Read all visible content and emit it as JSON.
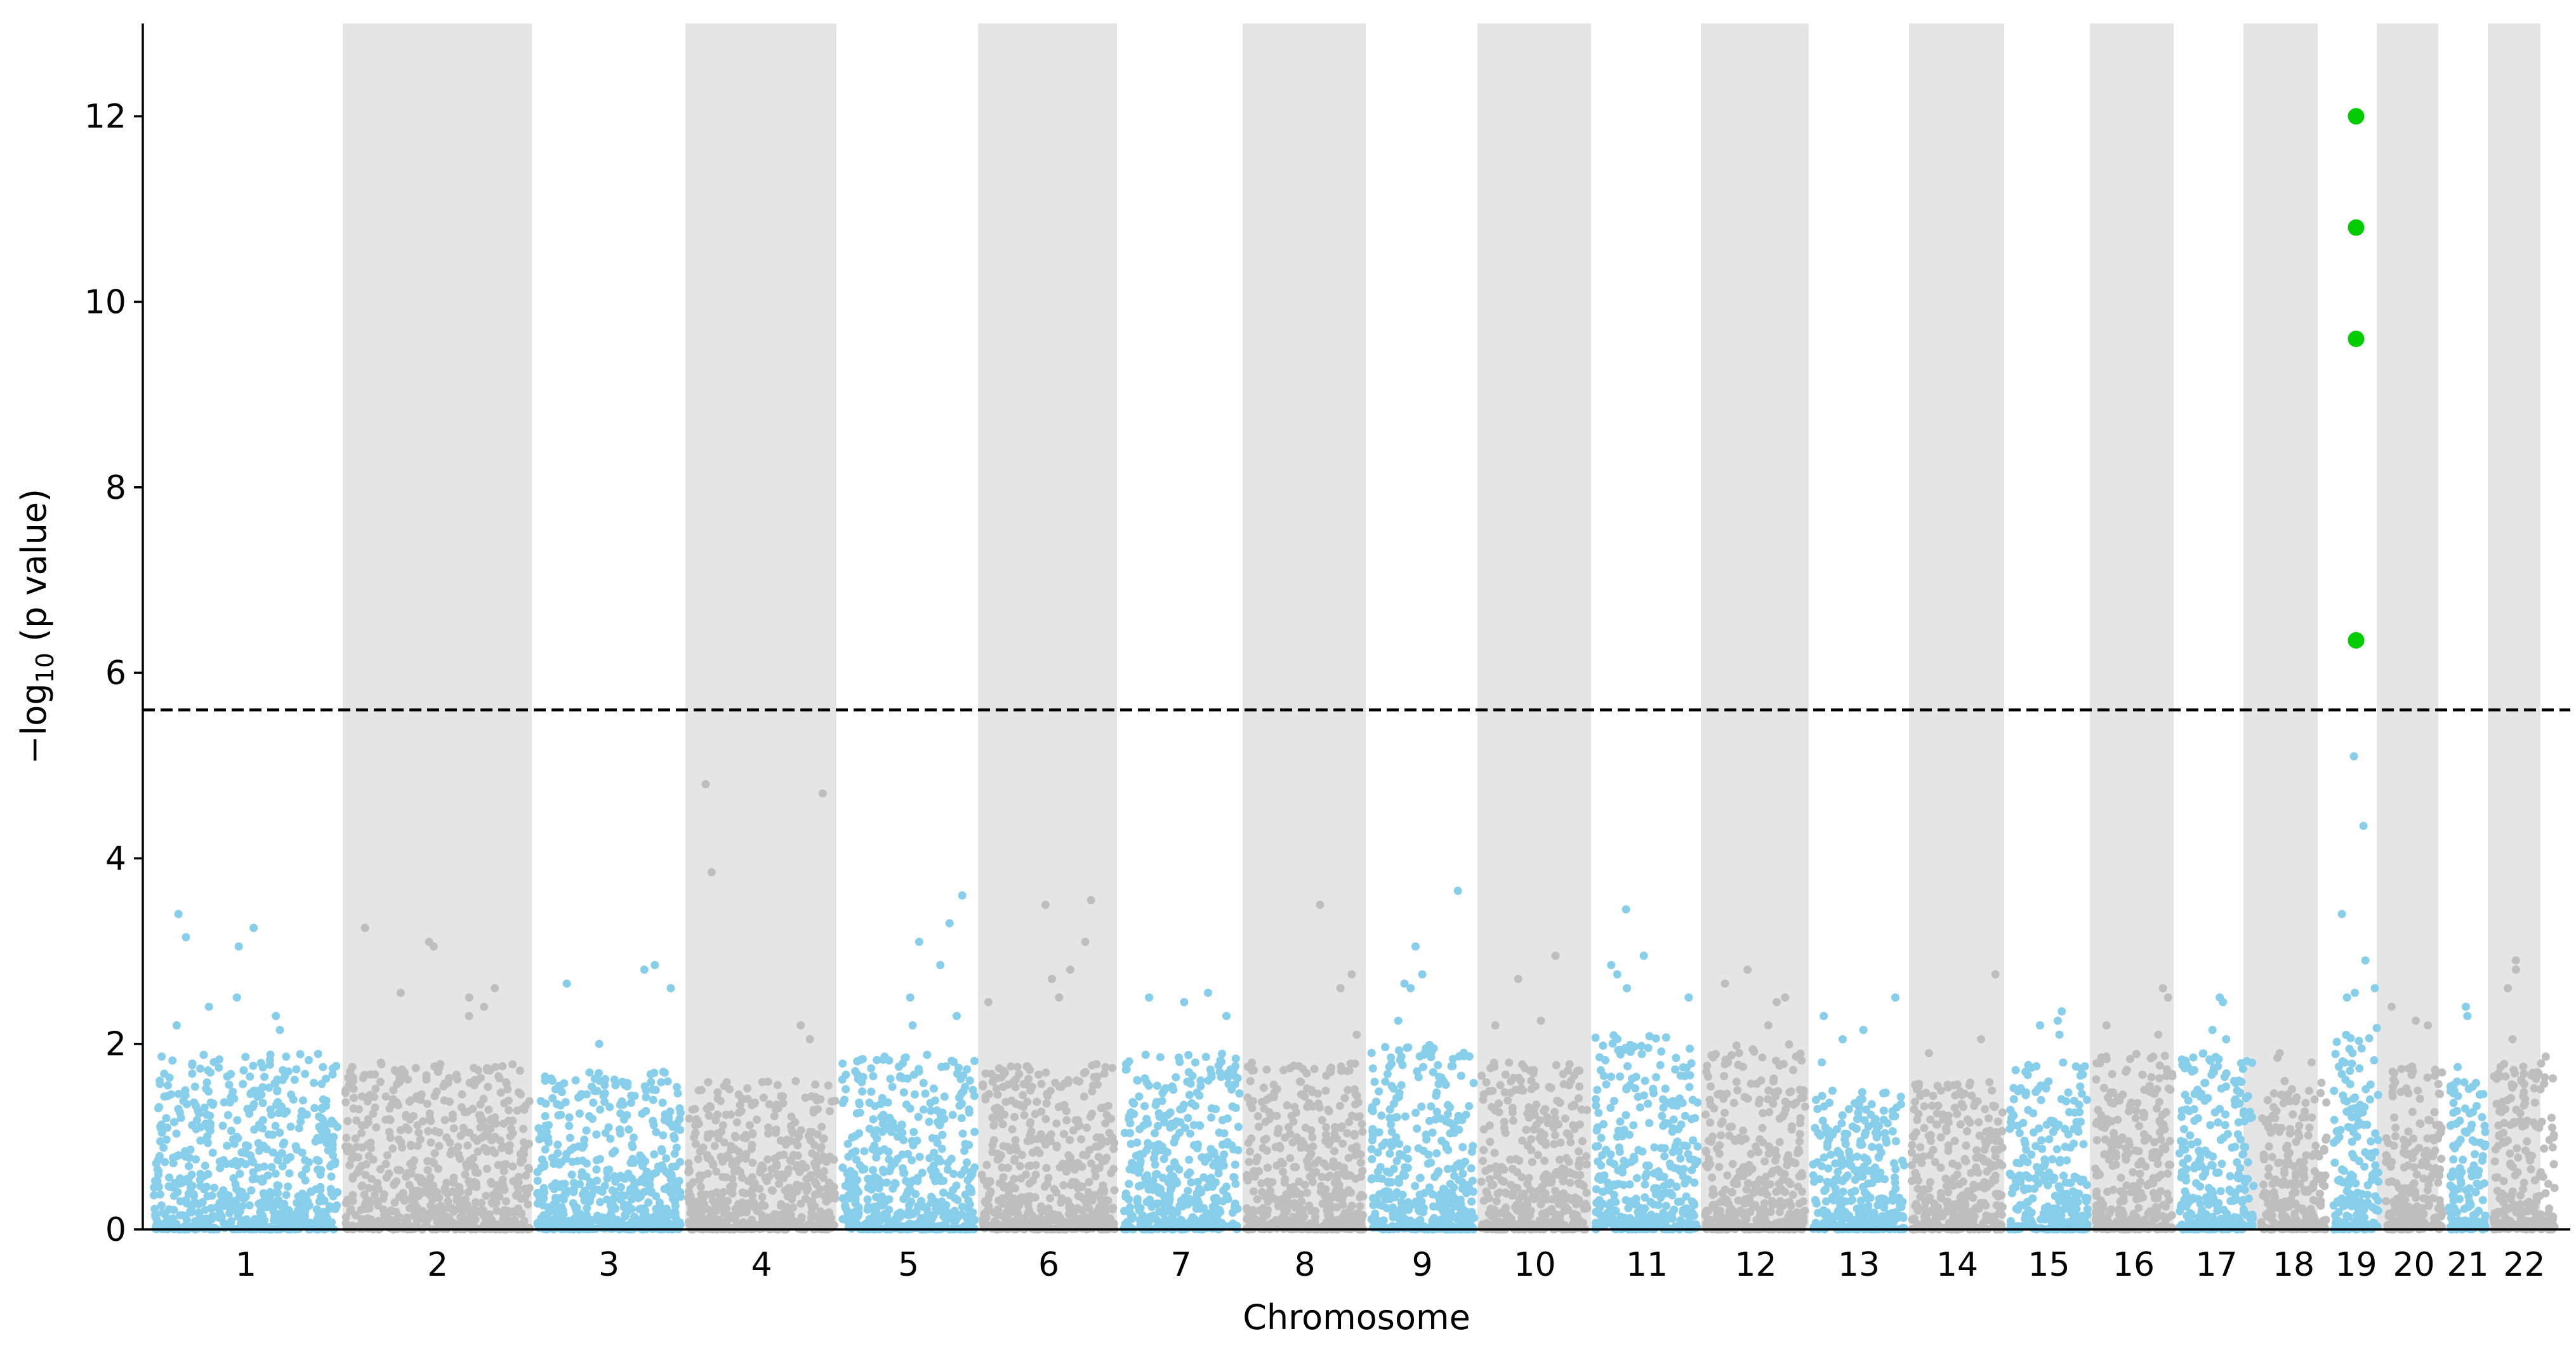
{
  "chart_data": {
    "type": "scatter",
    "subtype": "manhattan",
    "title": "",
    "xlabel": "Chromosome",
    "ylabel": {
      "prefix": "−log",
      "subscript": "10",
      "suffix": " (p value)"
    },
    "ylim": [
      0,
      13
    ],
    "yticks": [
      0,
      2,
      4,
      6,
      8,
      10,
      12
    ],
    "threshold": 5.6,
    "threshold_style": "dashed",
    "colors": {
      "odd_chromosome": "#87ceeb",
      "even_chromosome": "#bebebe",
      "significant": "#00cc00",
      "even_band": "#e5e5e5",
      "threshold_line": "#000000"
    },
    "chromosomes": [
      {
        "label": "1",
        "typical_max": 1.9,
        "top_hits": [
          3.4,
          3.25,
          3.15,
          3.05,
          2.5,
          2.4,
          2.3,
          2.2,
          2.15
        ]
      },
      {
        "label": "2",
        "typical_max": 1.8,
        "top_hits": [
          3.25,
          3.1,
          3.05,
          2.6,
          2.55,
          2.5,
          2.4,
          2.3
        ]
      },
      {
        "label": "3",
        "typical_max": 1.7,
        "top_hits": [
          2.85,
          2.8,
          2.65,
          2.6,
          2.0
        ]
      },
      {
        "label": "4",
        "typical_max": 1.6,
        "top_hits": [
          4.8,
          4.7,
          3.85,
          2.2,
          2.05
        ]
      },
      {
        "label": "5",
        "typical_max": 1.9,
        "top_hits": [
          3.6,
          3.3,
          3.1,
          2.85,
          2.5,
          2.3,
          2.2
        ]
      },
      {
        "label": "6",
        "typical_max": 1.8,
        "top_hits": [
          3.55,
          3.5,
          3.1,
          2.8,
          2.7,
          2.5,
          2.45
        ]
      },
      {
        "label": "7",
        "typical_max": 1.9,
        "top_hits": [
          2.55,
          2.5,
          2.45,
          2.3
        ]
      },
      {
        "label": "8",
        "typical_max": 1.8,
        "top_hits": [
          3.5,
          2.75,
          2.6,
          2.1
        ]
      },
      {
        "label": "9",
        "typical_max": 2.0,
        "top_hits": [
          3.65,
          3.05,
          2.75,
          2.65,
          2.6,
          2.25
        ]
      },
      {
        "label": "10",
        "typical_max": 1.8,
        "top_hits": [
          2.95,
          2.7,
          2.25,
          2.2
        ]
      },
      {
        "label": "11",
        "typical_max": 2.1,
        "top_hits": [
          3.45,
          2.95,
          2.85,
          2.75,
          2.6,
          2.5
        ]
      },
      {
        "label": "12",
        "typical_max": 2.0,
        "top_hits": [
          2.8,
          2.65,
          2.5,
          2.45,
          2.2
        ]
      },
      {
        "label": "13",
        "typical_max": 1.5,
        "top_hits": [
          2.5,
          2.3,
          2.15,
          2.05,
          1.8
        ]
      },
      {
        "label": "14",
        "typical_max": 1.6,
        "top_hits": [
          2.75,
          2.05,
          1.9
        ]
      },
      {
        "label": "15",
        "typical_max": 1.8,
        "top_hits": [
          2.35,
          2.25,
          2.2,
          2.1
        ]
      },
      {
        "label": "16",
        "typical_max": 1.9,
        "top_hits": [
          2.6,
          2.5,
          2.2,
          2.1
        ]
      },
      {
        "label": "17",
        "typical_max": 1.9,
        "top_hits": [
          2.5,
          2.45,
          2.15,
          2.05
        ]
      },
      {
        "label": "18",
        "typical_max": 1.6,
        "top_hits": [
          1.9,
          1.85,
          1.8
        ]
      },
      {
        "label": "19",
        "typical_max": 2.2,
        "top_hits": [
          12.0,
          10.8,
          9.6,
          6.35,
          5.1,
          4.35,
          3.4,
          2.9,
          2.6,
          2.55,
          2.5
        ]
      },
      {
        "label": "20",
        "typical_max": 1.8,
        "top_hits": [
          2.4,
          2.25,
          2.2
        ]
      },
      {
        "label": "21",
        "typical_max": 1.6,
        "top_hits": [
          2.4,
          2.3,
          1.75
        ]
      },
      {
        "label": "22",
        "typical_max": 1.9,
        "top_hits": [
          2.9,
          2.8,
          2.6,
          2.05
        ]
      }
    ]
  }
}
